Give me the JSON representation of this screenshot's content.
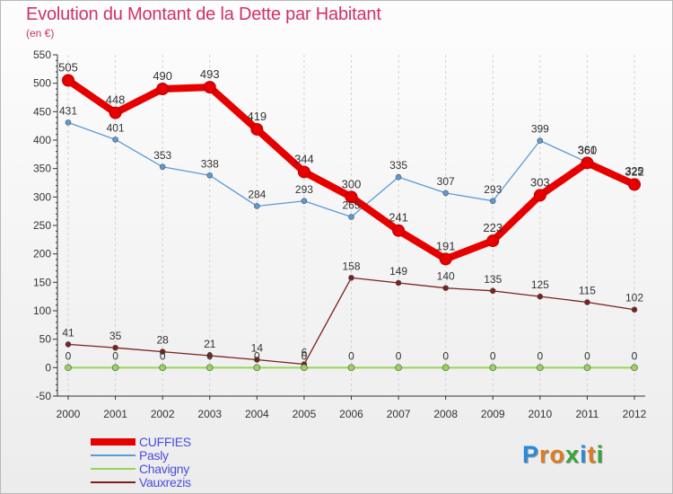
{
  "header": {
    "title": "Evolution du Montant de la Dette par Habitant",
    "subtitle": "(en €)"
  },
  "logo": {
    "letters": [
      "P",
      "r",
      "o",
      "x",
      "i",
      "t",
      "i"
    ],
    "colors": [
      "#2a8ad8",
      "#e07b20",
      "#e07b20",
      "#3aa43a",
      "#2a8ad8",
      "#e07b20",
      "#3aa43a"
    ]
  },
  "chart_data": {
    "type": "line",
    "x": [
      "2000",
      "2001",
      "2002",
      "2003",
      "2004",
      "2005",
      "2006",
      "2007",
      "2008",
      "2009",
      "2010",
      "2011",
      "2012"
    ],
    "ylim": [
      -50,
      550
    ],
    "yticks": [
      -50,
      0,
      50,
      100,
      150,
      200,
      250,
      300,
      350,
      400,
      450,
      500,
      550
    ],
    "ytick_labels": [
      "-50",
      "0",
      "50",
      "100",
      "150",
      "200",
      "250",
      "300",
      "350",
      "400",
      "450",
      "500",
      "550"
    ],
    "grid": {
      "horizontal": false,
      "vertical": true
    },
    "legend_position": "bottom-left",
    "series": [
      {
        "name": "CUFFIES",
        "color": "#e60000",
        "values": [
          505,
          448,
          490,
          493,
          419,
          344,
          300,
          241,
          191,
          223,
          303,
          360,
          322
        ],
        "labels": [
          "505",
          "448",
          "490",
          "493",
          "419",
          "344",
          "300",
          "241",
          "191",
          "223",
          "303",
          "360",
          "322"
        ]
      },
      {
        "name": "Pasly",
        "color": "#5b9ad6",
        "values": [
          431,
          401,
          353,
          338,
          284,
          293,
          265,
          335,
          307,
          293,
          399,
          361,
          325
        ],
        "labels": [
          "431",
          "401",
          "353",
          "338",
          "284",
          "293",
          "265",
          "335",
          "307",
          "293",
          "399",
          "361",
          "325"
        ]
      },
      {
        "name": "Chavigny",
        "color": "#99d45a",
        "values": [
          0,
          0,
          0,
          0,
          0,
          0,
          0,
          0,
          0,
          0,
          0,
          0,
          0
        ],
        "labels": [
          "0",
          "0",
          "0",
          "0",
          "0",
          "0",
          "0",
          "0",
          "0",
          "0",
          "0",
          "0",
          "0"
        ]
      },
      {
        "name": "Vauxrezis",
        "color": "#7a2020",
        "values": [
          41,
          35,
          28,
          21,
          14,
          6,
          158,
          149,
          140,
          135,
          125,
          115,
          102
        ],
        "labels": [
          "41",
          "35",
          "28",
          "21",
          "14",
          "6",
          "158",
          "149",
          "140",
          "135",
          "125",
          "115",
          "102"
        ]
      }
    ]
  }
}
